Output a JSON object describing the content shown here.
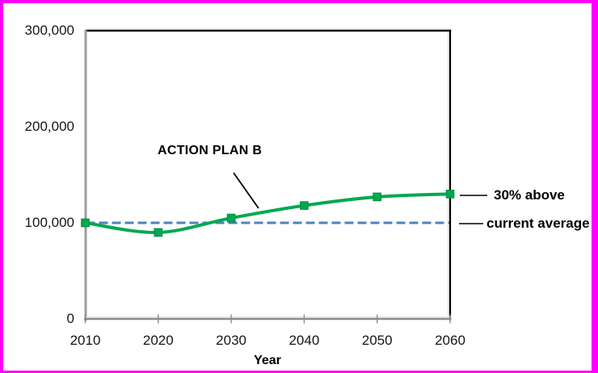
{
  "frame": {
    "border_color": "#ff00ff",
    "background": "#ffffff"
  },
  "chart_data": {
    "type": "line",
    "title": "",
    "xlabel": "Year",
    "ylabel": "",
    "x": [
      2010,
      2020,
      2030,
      2040,
      2050,
      2060
    ],
    "x_tick_labels": [
      "2010",
      "2020",
      "2030",
      "2040",
      "2050",
      "2060"
    ],
    "y_ticks": [
      0,
      100000,
      200000,
      300000
    ],
    "y_tick_labels": [
      "0",
      "100,000",
      "200,000",
      "300,000"
    ],
    "xlim": [
      2010,
      2060
    ],
    "ylim": [
      0,
      300000
    ],
    "grid": false,
    "legend": "none",
    "series": [
      {
        "name": "ACTION PLAN B",
        "values": [
          100000,
          90000,
          105000,
          118000,
          127000,
          130000
        ],
        "color": "#00a94f",
        "marker": "square",
        "smooth": true
      }
    ],
    "reference_line": {
      "label": "current average",
      "value": 100000,
      "color": "#4f81bd",
      "style": "dashed"
    }
  },
  "annotations": {
    "series_label": "ACTION PLAN B",
    "end_label": "30% above",
    "reference_label": "current average",
    "x_axis_title": "Year"
  }
}
